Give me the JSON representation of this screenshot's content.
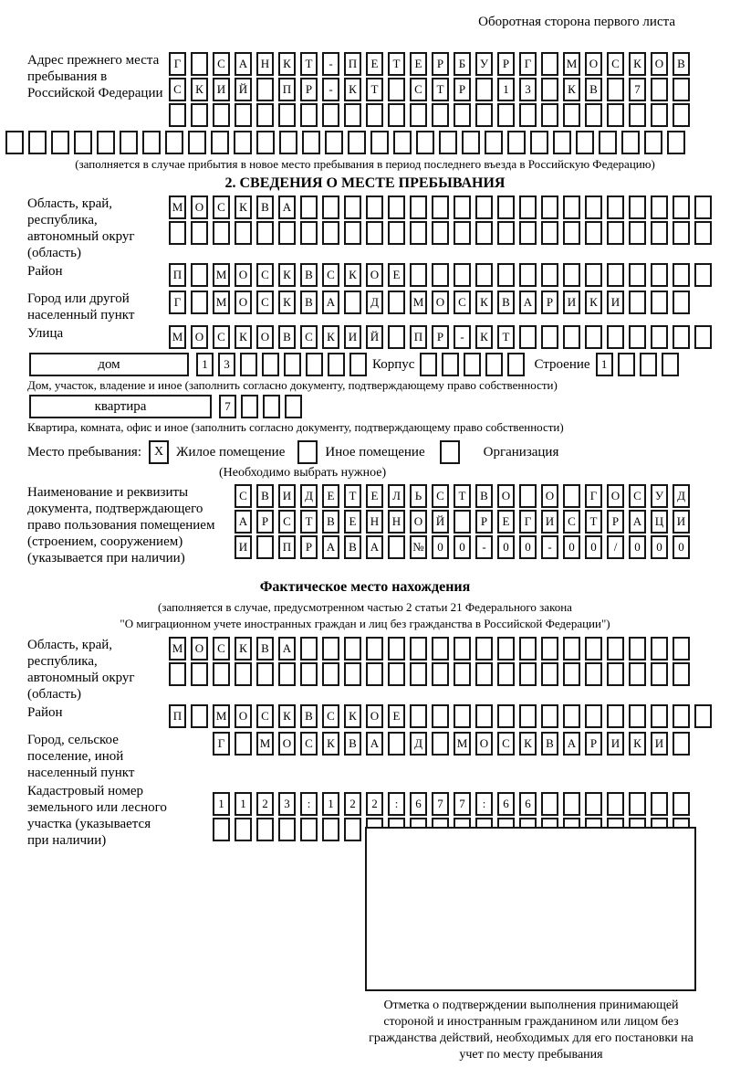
{
  "header": {
    "note": "Оборотная сторона первого листа"
  },
  "prev_address": {
    "label": "Адрес прежнего места пребывания в Российской Федерации",
    "rows": [
      "Г САНКТ-ПЕТЕРБУРГ МОСКОВ",
      "СКИЙ ПР-КТ СТР 13 КВ 7  ",
      "                        "
    ],
    "full_row": "                              ",
    "note": "(заполняется в случае прибытия в новое место пребывания в период последнего въезда в Российскую Федерацию)"
  },
  "section2": {
    "title": "2. СВЕДЕНИЯ О МЕСТЕ ПРЕБЫВАНИЯ",
    "region": {
      "label": "Область, край, республика, автономный округ (область)",
      "rows": [
        "МОСКВА                   ",
        "                         "
      ]
    },
    "district": {
      "label": "Район",
      "row": "П МОСКВСКОЕ              "
    },
    "city": {
      "label": "Город или другой населенный пункт",
      "row": "Г МОСКВА Д МОСКВАРИКИ   "
    },
    "street": {
      "label": "Улица",
      "row": "МОСКОВСКИЙ ПР-КТ         "
    },
    "house": {
      "box_label": "дом",
      "cells": "13      ",
      "korpus_label": "Корпус",
      "korpus_cells": "     ",
      "stroenie_label": "Строение",
      "stroenie_cells": "1   ",
      "note": "Дом, участок, владение и иное (заполнить согласно документу, подтверждающему право собственности)"
    },
    "apartment": {
      "box_label": "квартира",
      "cells": "7   ",
      "note": "Квартира, комната, офис и иное (заполнить согласно документу, подтверждающему право собственности)"
    },
    "stay_type": {
      "label": "Место пребывания:",
      "options": [
        {
          "label": "Жилое помещение",
          "checked": "X"
        },
        {
          "label": "Иное помещение",
          "checked": ""
        },
        {
          "label": "Организация",
          "checked": ""
        }
      ],
      "note": "(Необходимо выбрать нужное)"
    },
    "doc": {
      "label": "Наименование и реквизиты документа, подтверждающего право пользования помещением (строением, сооружением) (указывается при наличии)",
      "rows": [
        "СВИДЕТЕЛЬСТВО О ГОСУД",
        "АРСТВЕННОЙ РЕГИСТРАЦИ",
        "И ПРАВА №00-00-00/000"
      ]
    }
  },
  "actual_location": {
    "title": "Фактическое место нахождения",
    "note_line1": "(заполняется в случае, предусмотренном частью 2 статьи 21 Федерального закона",
    "note_line2": "\"О миграционном учете иностранных граждан и лиц без гражданства в Российской Федерации\")",
    "region": {
      "label": "Область, край, республика, автономный округ (область)",
      "rows": [
        "МОСКВА                  ",
        "                        "
      ]
    },
    "district": {
      "label": "Район",
      "row": "П МОСКВСКОЕ              "
    },
    "city": {
      "label": "Город, сельское поселение, иной населенный пункт",
      "row": "Г МОСКВА Д МОСКВАРИКИ "
    },
    "cadastre": {
      "label": "Кадастровый номер земельного или лесного участка (указывается при наличии)",
      "rows": [
        "1123:122:677:66       ",
        "                      "
      ]
    }
  },
  "stamp": {
    "caption": "Отметка о подтверждении выполнения принимающей стороной и иностранным гражданином или лицом без гражданства действий, необходимых для его постановки на учет по месту пребывания"
  }
}
